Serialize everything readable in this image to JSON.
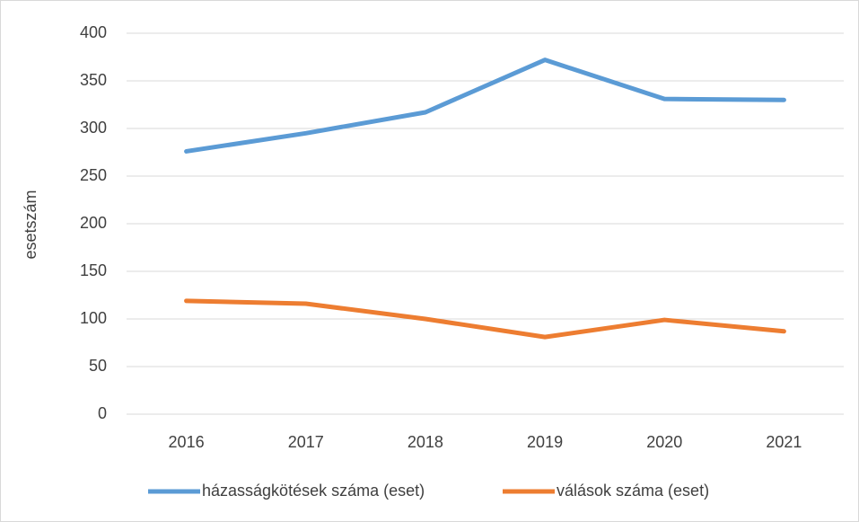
{
  "chart_data": {
    "type": "line",
    "y_label": "esetszám",
    "categories": [
      "2016",
      "2017",
      "2018",
      "2019",
      "2020",
      "2021"
    ],
    "series": [
      {
        "name": "házasságkötések száma (eset)",
        "color": "#5b9bd5",
        "values": [
          276,
          295,
          317,
          372,
          331,
          330
        ]
      },
      {
        "name": "válások száma (eset)",
        "color": "#ed7d31",
        "values": [
          119,
          116,
          100,
          81,
          99,
          87
        ]
      }
    ],
    "ylim": [
      0,
      400
    ],
    "yticks": [
      0,
      50,
      100,
      150,
      200,
      250,
      300,
      350,
      400
    ],
    "grid": true,
    "legend": "bottom"
  }
}
